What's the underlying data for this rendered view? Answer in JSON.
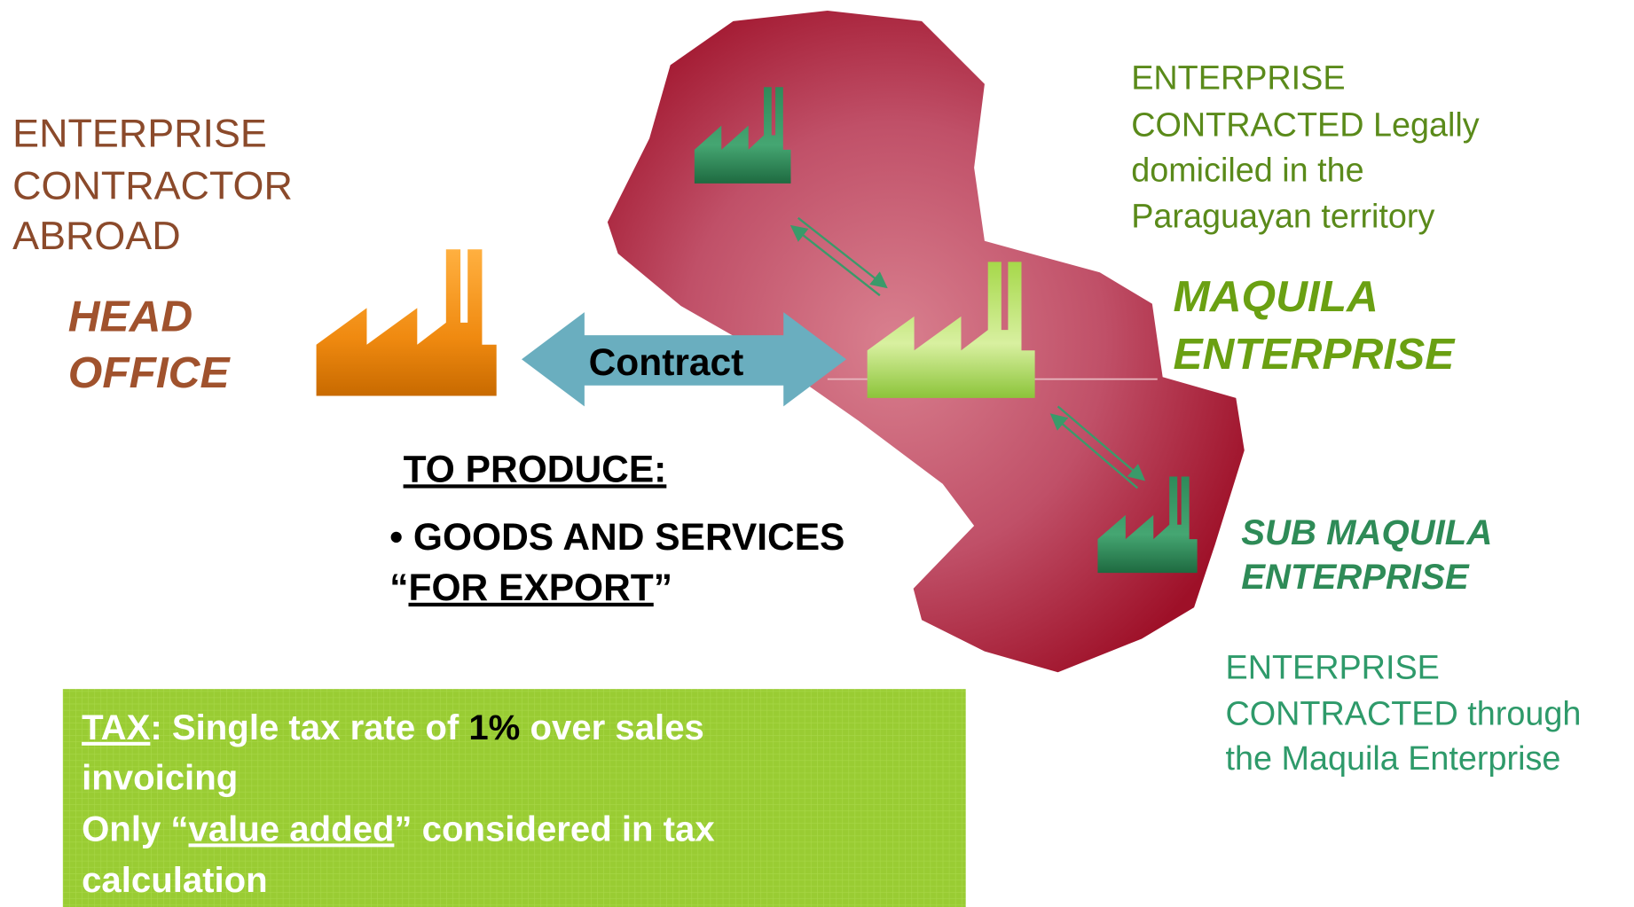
{
  "contractor_abroad": {
    "lines": [
      "ENTERPRISE",
      "CONTRACTOR",
      "ABROAD"
    ]
  },
  "head_office": {
    "lines": [
      "HEAD",
      "OFFICE"
    ]
  },
  "contract_label": "Contract",
  "produce": {
    "heading": "TO PRODUCE:",
    "bullet": "• GOODS AND SERVICES",
    "export": {
      "open": "“",
      "text": "FOR EXPORT",
      "close": "”"
    }
  },
  "contracted_legally": {
    "lines": [
      "ENTERPRISE",
      "CONTRACTED Legally",
      "domiciled in the",
      "Paraguayan territory"
    ]
  },
  "maquila": {
    "lines": [
      "MAQUILA",
      "ENTERPRISE"
    ]
  },
  "sub_maquila": {
    "lines": [
      "SUB MAQUILA",
      "ENTERPRISE"
    ]
  },
  "contracted_through": {
    "lines": [
      "ENTERPRISE",
      "CONTRACTED through",
      "the Maquila Enterprise"
    ]
  },
  "tax": {
    "line1": {
      "label": "TAX",
      "rest": ": Single tax rate of ",
      "rate": "1%",
      "end": " over sales"
    },
    "line2": "invoicing",
    "line3": {
      "start": "Only “",
      "emph": "value added",
      "end": "” considered in tax"
    },
    "line4": "calculation"
  }
}
